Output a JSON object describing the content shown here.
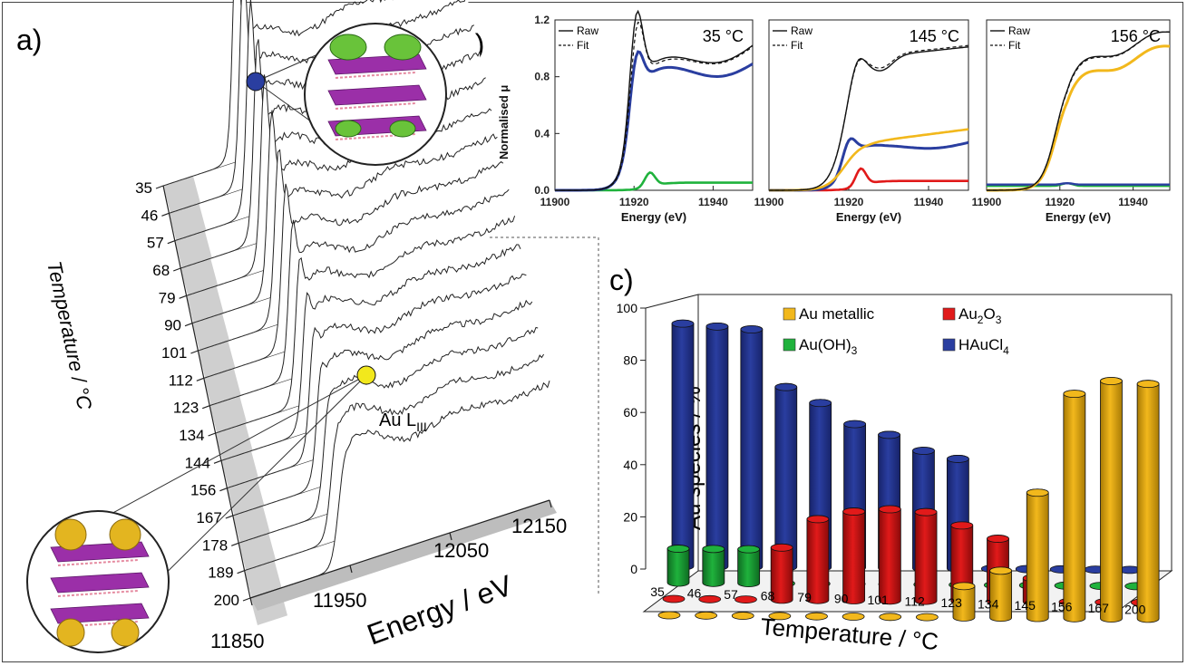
{
  "panel_labels": {
    "a": "a)",
    "b": "b)",
    "c": "c)"
  },
  "colors": {
    "metallic": "#f2b81c",
    "au2o3": "#e11a1a",
    "auoh3": "#1fb23c",
    "haucl4": "#2a3ea0",
    "gray_face": "#cfcfcf"
  },
  "chart_data": [
    {
      "id": "panel-a",
      "type": "line",
      "title": "",
      "annotation_edge": "Au L",
      "annotation_edge_sub": "III",
      "xlabel": "Energy / eV",
      "ylabel": "Temperature / °C",
      "x_ticks": [
        "11850",
        "11950",
        "12050",
        "12150"
      ],
      "temperatures": [
        "35",
        "46",
        "57",
        "68",
        "79",
        "90",
        "101",
        "112",
        "123",
        "134",
        "144",
        "156",
        "167",
        "178",
        "189",
        "200"
      ],
      "xlim": [
        11850,
        12150
      ]
    },
    {
      "id": "panel-b1",
      "type": "line",
      "title": "35 °C",
      "xlabel": "Energy (eV)",
      "ylabel": "Normalised μ",
      "xlim": [
        11900,
        11950
      ],
      "ylim": [
        0,
        1.2
      ],
      "x_ticks": [
        "11900",
        "11920",
        "11940"
      ],
      "y_ticks": [
        "0.0",
        "0.4",
        "0.8",
        "1.2"
      ],
      "legend": [
        "Raw",
        "Fit"
      ]
    },
    {
      "id": "panel-b2",
      "type": "line",
      "title": "145 °C",
      "xlabel": "Energy (eV)",
      "xlim": [
        11900,
        11950
      ],
      "x_ticks": [
        "11900",
        "11920",
        "11940"
      ],
      "legend": [
        "Raw",
        "Fit"
      ]
    },
    {
      "id": "panel-b3",
      "type": "line",
      "title": "156 °C",
      "xlabel": "Energy (eV)",
      "xlim": [
        11900,
        11950
      ],
      "x_ticks": [
        "11900",
        "11920",
        "11940"
      ],
      "legend": [
        "Raw",
        "Fit"
      ]
    },
    {
      "id": "panel-c",
      "type": "bar",
      "xlabel": "Temperature / °C",
      "ylabel": "Au species / %",
      "ylim": [
        0,
        100
      ],
      "y_ticks": [
        "0",
        "20",
        "40",
        "60",
        "80",
        "100"
      ],
      "categories": [
        "35",
        "46",
        "57",
        "68",
        "79",
        "90",
        "101",
        "112",
        "123",
        "134",
        "145",
        "156",
        "167",
        "200"
      ],
      "series": [
        {
          "name": "HAuCl4",
          "legend_main": "HAuCl",
          "legend_sub": "4",
          "values": [
            93,
            92,
            91,
            69,
            63,
            55,
            51,
            45,
            42,
            0,
            0,
            0,
            0,
            0
          ]
        },
        {
          "name": "Au(OH)3",
          "legend_main": "Au(OH)",
          "legend_sub": "3",
          "values": [
            13,
            13,
            13,
            0,
            0,
            0,
            0,
            0,
            0,
            0,
            0,
            0,
            0,
            0
          ]
        },
        {
          "name": "Au2O3",
          "legend_main": "Au",
          "legend_sub": "2",
          "legend_tail": "O",
          "legend_sub2": "3",
          "values": [
            0,
            0,
            0,
            20,
            31,
            34,
            35,
            34,
            29,
            24,
            9,
            0,
            0,
            0
          ]
        },
        {
          "name": "Au metallic",
          "legend_main": "Au metallic",
          "values": [
            0,
            0,
            0,
            0,
            0,
            0,
            0,
            0,
            12,
            18,
            48,
            86,
            91,
            90
          ]
        }
      ]
    }
  ]
}
